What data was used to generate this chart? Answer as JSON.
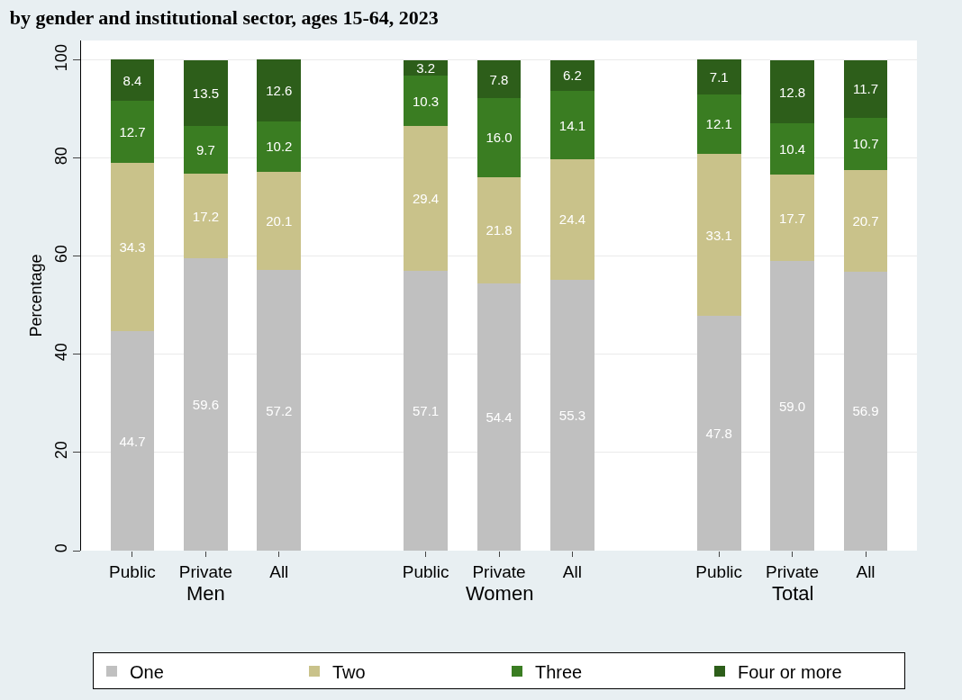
{
  "chart_data": {
    "type": "bar",
    "stacked": true,
    "title": "by gender and institutional sector, ages 15-64, 2023",
    "ylabel": "Percentage",
    "categories": [
      "Public",
      "Private",
      "All",
      null,
      "Public",
      "Private",
      "All",
      null,
      "Public",
      "Private",
      "All"
    ],
    "annotations": [
      "Men",
      "Women",
      "Total"
    ],
    "series": [
      {
        "name": "One",
        "color": "#c0c0c0",
        "values": [
          44.7,
          59.6,
          57.2,
          null,
          57.1,
          54.4,
          55.3,
          null,
          47.8,
          59.0,
          56.9
        ],
        "value_labels": [
          "44.7",
          "59.6",
          "57.2",
          null,
          "57.1",
          "54.4",
          "55.3",
          null,
          "47.8",
          "59.0",
          "56.9"
        ]
      },
      {
        "name": "Two",
        "color": "#c9c28a",
        "values": [
          34.3,
          17.2,
          20.1,
          null,
          29.4,
          21.8,
          24.4,
          null,
          33.1,
          17.7,
          20.7
        ],
        "value_labels": [
          "34.3",
          "17.2",
          "20.1",
          null,
          "29.4",
          "21.8",
          "24.4",
          null,
          "33.1",
          "17.7",
          "20.7"
        ]
      },
      {
        "name": "Three",
        "color": "#3a7d22",
        "values": [
          12.7,
          9.7,
          10.2,
          null,
          10.3,
          16.0,
          14.1,
          null,
          12.1,
          10.4,
          10.7
        ],
        "value_labels": [
          "12.7",
          "9.7",
          "10.2",
          null,
          "10.3",
          "16.0",
          "14.1",
          null,
          "12.1",
          "10.4",
          "10.7"
        ]
      },
      {
        "name": "Four or more",
        "color": "#2d5e1a",
        "values": [
          8.4,
          13.5,
          12.6,
          null,
          3.2,
          7.8,
          6.2,
          null,
          7.1,
          12.8,
          11.7
        ],
        "value_labels": [
          "8.4",
          "13.5",
          "12.6",
          null,
          "3.2",
          "7.8",
          "6.2",
          null,
          "7.1",
          "12.8",
          "11.7"
        ]
      }
    ],
    "ylim": [
      0,
      104
    ],
    "yticks": [
      0,
      20,
      40,
      60,
      80,
      100
    ],
    "grid": "y",
    "legend": "bottom"
  }
}
